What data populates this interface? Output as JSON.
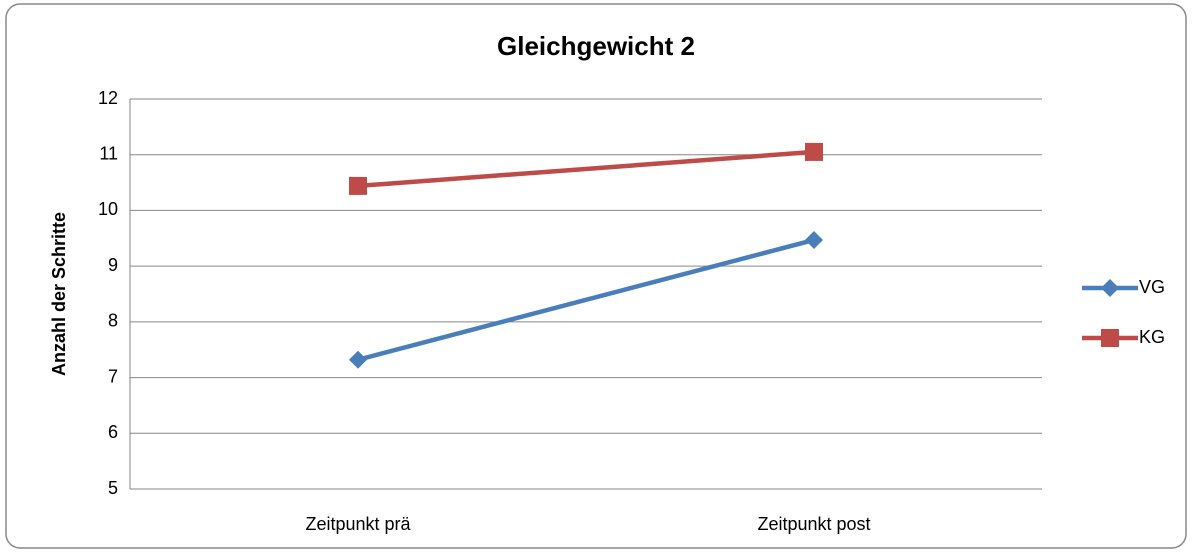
{
  "chart_data": {
    "type": "line",
    "title": "Gleichgewicht 2",
    "y_label": "Anzahl der Schritte",
    "categories": [
      "Zeitpunkt prä",
      "Zeitpunkt post"
    ],
    "series": [
      {
        "name": "VG",
        "color": "#4a7ebb",
        "marker": "diamond",
        "values": [
          7.32,
          9.47
        ]
      },
      {
        "name": "KG",
        "color": "#be4b48",
        "marker": "square",
        "values": [
          10.44,
          11.05
        ]
      }
    ],
    "ylim": [
      5,
      12
    ],
    "yticks": [
      5,
      6,
      7,
      8,
      9,
      10,
      11,
      12
    ],
    "grid": true,
    "legend": "right"
  }
}
